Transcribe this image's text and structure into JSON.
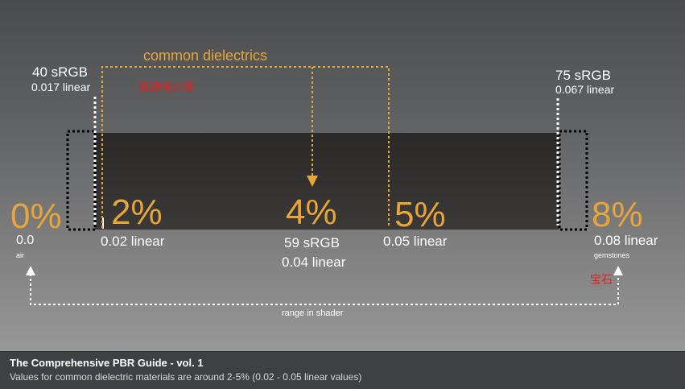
{
  "diagram": {
    "header_orange": "common dielectrics",
    "header_cn": "普通电介质",
    "left_marker": {
      "srgb": "40 sRGB",
      "linear": "0.017 linear"
    },
    "right_marker": {
      "srgb": "75 sRGB",
      "linear": "0.067 linear"
    },
    "ticks": [
      {
        "pct": "0%",
        "value": "0.0",
        "note": "air"
      },
      {
        "pct": "2%",
        "value": "0.02 linear"
      },
      {
        "pct": "4%",
        "srgb": "59 sRGB",
        "value": "0.04 linear"
      },
      {
        "pct": "5%",
        "value": "0.05 linear"
      },
      {
        "pct": "8%",
        "value": "0.08 linear",
        "note": "gemstones",
        "note_cn": "宝石"
      }
    ],
    "range_label": "range in shader",
    "colors": {
      "accent": "#e8a53a",
      "bar": "#2b2a29",
      "annotation": "#e0201a"
    }
  },
  "footer": {
    "title": "The Comprehensive PBR Guide - vol. 1",
    "subtitle": "Values for common dielectric materials are around 2-5% (0.02 - 0.05 linear values)"
  }
}
